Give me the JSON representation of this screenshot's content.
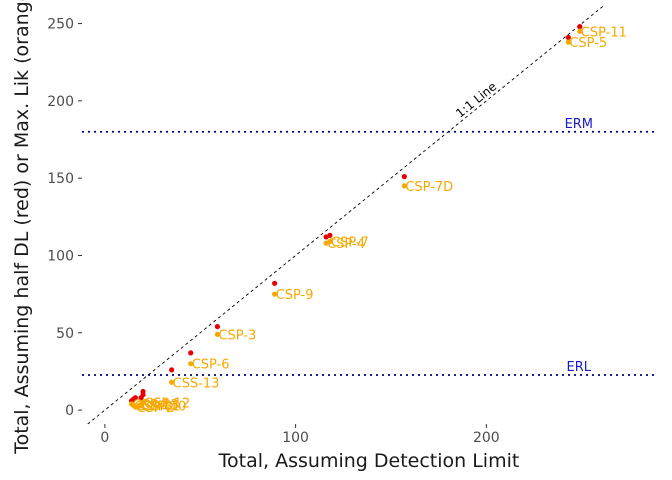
{
  "chart_data": {
    "type": "scatter",
    "xlabel": "Total, Assuming Detection Limit",
    "ylabel": "Total, Assuming half DL (red) or Max. Lik (orange)",
    "xlim": [
      -12,
      290
    ],
    "ylim": [
      -9,
      262
    ],
    "xticks": [
      0,
      100,
      200
    ],
    "yticks": [
      0,
      50,
      100,
      150,
      200,
      250
    ],
    "grid": false,
    "colors": {
      "half_dl": "#e60000",
      "max_lik": "#f5a800",
      "ref_line": "#00008b",
      "ref_label": "#1a1acc",
      "identity": "#000000"
    },
    "series": [
      {
        "name": "half DL",
        "color": "#e60000",
        "points": [
          {
            "x": 249,
            "y": 248
          },
          {
            "x": 243,
            "y": 241
          },
          {
            "x": 157,
            "y": 151
          },
          {
            "x": 118,
            "y": 113
          },
          {
            "x": 116,
            "y": 112
          },
          {
            "x": 89,
            "y": 82
          },
          {
            "x": 59,
            "y": 54
          },
          {
            "x": 45,
            "y": 37
          },
          {
            "x": 35,
            "y": 26
          },
          {
            "x": 20,
            "y": 12
          },
          {
            "x": 20,
            "y": 10
          },
          {
            "x": 19,
            "y": 8
          },
          {
            "x": 16,
            "y": 8
          },
          {
            "x": 15,
            "y": 7
          },
          {
            "x": 14,
            "y": 6
          }
        ]
      },
      {
        "name": "Max. Lik",
        "color": "#f5a800",
        "points": [
          {
            "x": 249,
            "y": 245,
            "label": "CSP-11"
          },
          {
            "x": 243,
            "y": 238,
            "label": "CSP-5"
          },
          {
            "x": 157,
            "y": 145,
            "label": "CSP-7D"
          },
          {
            "x": 118,
            "y": 109,
            "label": "CSP-7"
          },
          {
            "x": 116,
            "y": 108,
            "label": "CSP-4"
          },
          {
            "x": 89,
            "y": 75,
            "label": "CSP-9"
          },
          {
            "x": 59,
            "y": 49,
            "label": "CSP-3"
          },
          {
            "x": 45,
            "y": 30,
            "label": "CSP-6"
          },
          {
            "x": 35,
            "y": 18,
            "label": "CSS-13"
          },
          {
            "x": 20,
            "y": 5,
            "label": "CSP-12"
          },
          {
            "x": 19,
            "y": 3,
            "label": "CSP-1"
          },
          {
            "x": 18,
            "y": 3,
            "label": "CSP-10"
          },
          {
            "x": 16,
            "y": 2,
            "label": "CSP-2"
          },
          {
            "x": 15,
            "y": 3,
            "label": "CSP-8"
          },
          {
            "x": 14,
            "y": 4,
            "label": "CSP-13"
          }
        ]
      }
    ],
    "reference_lines": [
      {
        "y": 180,
        "label": "ERM",
        "x_label": 249
      },
      {
        "y": 22.7,
        "label": "ERL",
        "x_label": 249
      }
    ],
    "identity_line": {
      "label": "1:1 Line",
      "from": -9,
      "to": 262,
      "label_at": 196
    }
  }
}
